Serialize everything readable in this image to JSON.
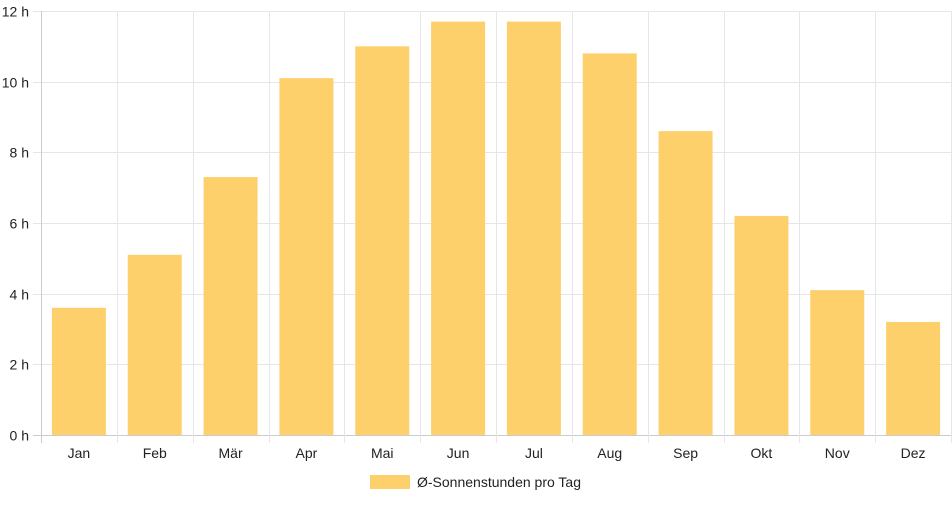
{
  "chart_data": {
    "type": "bar",
    "categories": [
      "Jan",
      "Feb",
      "Mär",
      "Apr",
      "Mai",
      "Jun",
      "Jul",
      "Aug",
      "Sep",
      "Okt",
      "Nov",
      "Dez"
    ],
    "series": [
      {
        "name": "Ø-Sonnenstunden pro Tag",
        "values": [
          3.6,
          5.1,
          7.3,
          10.1,
          11.0,
          11.7,
          11.7,
          10.8,
          8.6,
          6.2,
          4.1,
          3.2
        ],
        "color": "#fdd06b"
      }
    ],
    "yticks": [
      "0 h",
      "2 h",
      "4 h",
      "6 h",
      "8 h",
      "10 h",
      "12 h"
    ],
    "ylim": [
      0,
      12
    ],
    "grid": true,
    "legend_position": "bottom-center",
    "colors": {
      "bar": "#fdd06b",
      "grid": "#e6e6e6",
      "axis": "#cccccc",
      "text": "#222222"
    }
  }
}
